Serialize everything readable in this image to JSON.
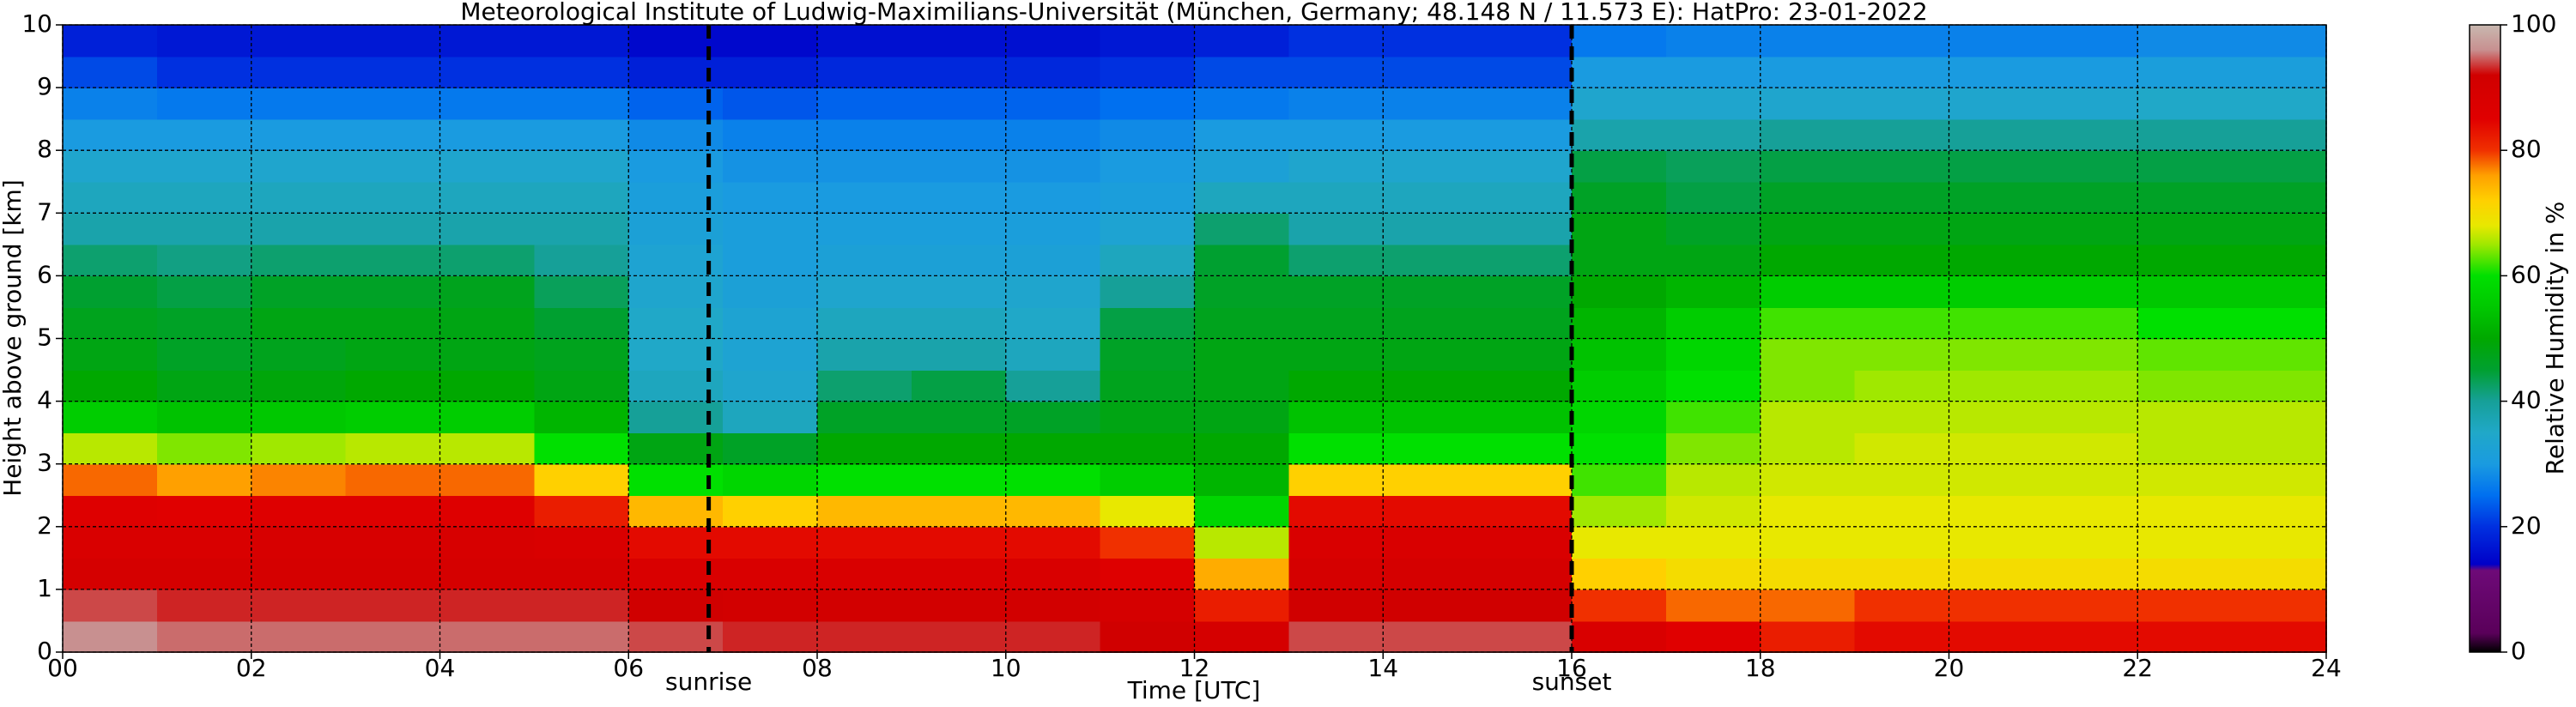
{
  "chart_data": {
    "type": "heatmap",
    "title": "Meteorological Institute of Ludwig-Maximilians-Universität (München, Germany; 48.148 N / 11.573 E):    HatPro: 23-01-2022",
    "x_label": "Time [UTC]",
    "y_label": "Height above ground [km]",
    "colorbar_label": "Relative Humidity in %",
    "xlim": [
      0,
      24
    ],
    "xticks": [
      {
        "value": 0,
        "label": "00"
      },
      {
        "value": 2,
        "label": "02"
      },
      {
        "value": 4,
        "label": "04"
      },
      {
        "value": 6,
        "label": "06"
      },
      {
        "value": 8,
        "label": "08"
      },
      10,
      12,
      14,
      16,
      18,
      20,
      22,
      24
    ],
    "ylim": [
      0,
      10
    ],
    "yticks": [
      0,
      1,
      2,
      3,
      4,
      5,
      6,
      7,
      8,
      9,
      10
    ],
    "zlim": [
      0,
      100
    ],
    "zticks": [
      0,
      20,
      40,
      60,
      80,
      100
    ],
    "grid": true,
    "x": [
      0.5,
      1.5,
      2.5,
      3.5,
      4.5,
      5.5,
      6.5,
      7.5,
      8.5,
      9.5,
      10.5,
      11.5,
      12.5,
      13.5,
      14.5,
      15.5,
      16.5,
      17.5,
      18.5,
      19.5,
      20.5,
      21.5,
      22.5,
      23.5
    ],
    "y": [
      0.25,
      0.75,
      1.25,
      1.75,
      2.25,
      2.75,
      3.25,
      3.75,
      4.25,
      4.75,
      5.25,
      5.75,
      6.25,
      6.75,
      7.25,
      7.75,
      8.25,
      8.75,
      9.25,
      9.75
    ],
    "z": [
      [
        96,
        94,
        90,
        88,
        86,
        78,
        66,
        56,
        50,
        48,
        47,
        45,
        42,
        38,
        36,
        34,
        30,
        27,
        22,
        18
      ],
      [
        95,
        93,
        90,
        88,
        85,
        76,
        64,
        54,
        48,
        46,
        46,
        44,
        41,
        38,
        36,
        34,
        30,
        26,
        20,
        17
      ],
      [
        95,
        93,
        90,
        89,
        86,
        77,
        65,
        55,
        49,
        47,
        48,
        46,
        42,
        38,
        36,
        34,
        30,
        26,
        20,
        17
      ],
      [
        95,
        93,
        90,
        89,
        86,
        78,
        66,
        56,
        50,
        48,
        48,
        46,
        42,
        38,
        36,
        34,
        30,
        26,
        20,
        17
      ],
      [
        95,
        93,
        90,
        89,
        86,
        78,
        66,
        56,
        50,
        48,
        48,
        47,
        42,
        38,
        36,
        34,
        30,
        26,
        20,
        17
      ],
      [
        95,
        93,
        90,
        88,
        82,
        72,
        60,
        52,
        48,
        47,
        45,
        43,
        40,
        38,
        36,
        34,
        30,
        26,
        20,
        17
      ],
      [
        94,
        92,
        88,
        84,
        74,
        60,
        48,
        40,
        36,
        35,
        35,
        34,
        33,
        32,
        31,
        30,
        28,
        24,
        18,
        15
      ],
      [
        93,
        91,
        88,
        84,
        72,
        58,
        46,
        36,
        34,
        33,
        33,
        32,
        31,
        31,
        30,
        29,
        27,
        23,
        18,
        15
      ],
      [
        93,
        91,
        88,
        84,
        74,
        60,
        50,
        46,
        42,
        38,
        36,
        34,
        32,
        31,
        30,
        29,
        27,
        24,
        19,
        16
      ],
      [
        93,
        91,
        88,
        84,
        74,
        60,
        50,
        46,
        44,
        38,
        36,
        34,
        32,
        31,
        30,
        29,
        27,
        24,
        19,
        16
      ],
      [
        93,
        91,
        88,
        84,
        74,
        60,
        50,
        46,
        40,
        36,
        35,
        34,
        32,
        31,
        30,
        29,
        27,
        24,
        19,
        16
      ],
      [
        92,
        90,
        86,
        80,
        68,
        56,
        50,
        48,
        47,
        46,
        44,
        40,
        36,
        33,
        31,
        30,
        28,
        25,
        20,
        17
      ],
      [
        90,
        82,
        75,
        66,
        58,
        52,
        50,
        48,
        48,
        48,
        47,
        46,
        45,
        42,
        36,
        32,
        30,
        26,
        22,
        18
      ],
      [
        94,
        92,
        90,
        88,
        84,
        72,
        60,
        54,
        50,
        48,
        47,
        46,
        42,
        38,
        36,
        34,
        30,
        27,
        22,
        20
      ],
      [
        94,
        92,
        90,
        88,
        84,
        72,
        60,
        54,
        50,
        48,
        47,
        46,
        42,
        38,
        36,
        34,
        30,
        27,
        22,
        20
      ],
      [
        94,
        92,
        90,
        88,
        84,
        72,
        60,
        54,
        50,
        48,
        47,
        46,
        42,
        38,
        36,
        34,
        30,
        27,
        22,
        20
      ],
      [
        88,
        80,
        72,
        68,
        65,
        62,
        60,
        58,
        56,
        54,
        52,
        50,
        48,
        48,
        46,
        44,
        38,
        34,
        30,
        26
      ],
      [
        85,
        78,
        70,
        68,
        67,
        66,
        64,
        62,
        60,
        58,
        56,
        52,
        48,
        46,
        44,
        43,
        38,
        34,
        30,
        27
      ],
      [
        82,
        78,
        70,
        68,
        68,
        67,
        66,
        66,
        64,
        64,
        62,
        56,
        50,
        48,
        46,
        44,
        40,
        34,
        30,
        27
      ],
      [
        84,
        80,
        70,
        68,
        68,
        67,
        67,
        66,
        65,
        64,
        62,
        56,
        50,
        48,
        46,
        44,
        40,
        34,
        30,
        27
      ],
      [
        84,
        80,
        70,
        68,
        68,
        67,
        67,
        66,
        65,
        64,
        62,
        56,
        50,
        48,
        46,
        44,
        40,
        34,
        30,
        27
      ],
      [
        84,
        80,
        70,
        68,
        68,
        67,
        67,
        66,
        65,
        64,
        62,
        56,
        50,
        48,
        46,
        44,
        40,
        34,
        30,
        27
      ],
      [
        84,
        80,
        70,
        68,
        68,
        67,
        66,
        66,
        64,
        63,
        60,
        55,
        50,
        48,
        46,
        44,
        40,
        35,
        31,
        28
      ],
      [
        84,
        80,
        70,
        68,
        68,
        67,
        66,
        66,
        64,
        63,
        60,
        55,
        50,
        48,
        46,
        44,
        40,
        35,
        31,
        28
      ]
    ],
    "colormap": [
      {
        "value": 0,
        "color": "#000000"
      },
      {
        "value": 3,
        "color": "#5a005a"
      },
      {
        "value": 13,
        "color": "#6e0a78"
      },
      {
        "value": 14,
        "color": "#0000c8"
      },
      {
        "value": 20,
        "color": "#0030e0"
      },
      {
        "value": 25,
        "color": "#0070f0"
      },
      {
        "value": 30,
        "color": "#1a9be0"
      },
      {
        "value": 35,
        "color": "#20a8c8"
      },
      {
        "value": 40,
        "color": "#16a098"
      },
      {
        "value": 45,
        "color": "#00a030"
      },
      {
        "value": 50,
        "color": "#00a800"
      },
      {
        "value": 55,
        "color": "#00c800"
      },
      {
        "value": 60,
        "color": "#00e000"
      },
      {
        "value": 65,
        "color": "#a0e800"
      },
      {
        "value": 68,
        "color": "#e8e800"
      },
      {
        "value": 72,
        "color": "#ffd000"
      },
      {
        "value": 76,
        "color": "#ffa000"
      },
      {
        "value": 80,
        "color": "#f03000"
      },
      {
        "value": 85,
        "color": "#e00000"
      },
      {
        "value": 92,
        "color": "#d00000"
      },
      {
        "value": 96,
        "color": "#c89090"
      },
      {
        "value": 100,
        "color": "#c8b8b0"
      }
    ],
    "annotations": [
      {
        "x": 6.85,
        "label": "sunrise"
      },
      {
        "x": 16.0,
        "label": "sunset"
      }
    ]
  }
}
